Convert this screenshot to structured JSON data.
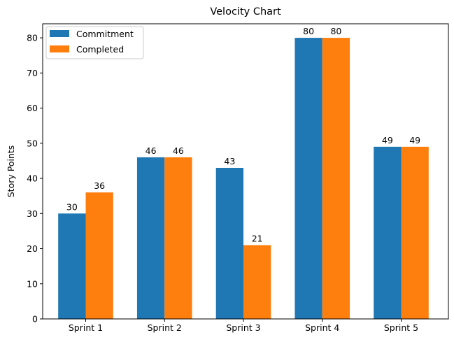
{
  "chart_data": {
    "type": "bar",
    "title": "Velocity Chart",
    "xlabel": "",
    "ylabel": "Story Points",
    "categories": [
      "Sprint 1",
      "Sprint 2",
      "Sprint 3",
      "Sprint 4",
      "Sprint 5"
    ],
    "series": [
      {
        "name": "Commitment",
        "values": [
          30,
          46,
          43,
          80,
          49
        ],
        "color": "#1f77b4"
      },
      {
        "name": "Completed",
        "values": [
          36,
          46,
          21,
          80,
          49
        ],
        "color": "#ff7f0e"
      }
    ],
    "ylim": [
      0,
      84
    ],
    "yticks": [
      0,
      10,
      20,
      30,
      40,
      50,
      60,
      70,
      80
    ],
    "legend_position": "top-left",
    "grid": false,
    "data_labels": true
  }
}
